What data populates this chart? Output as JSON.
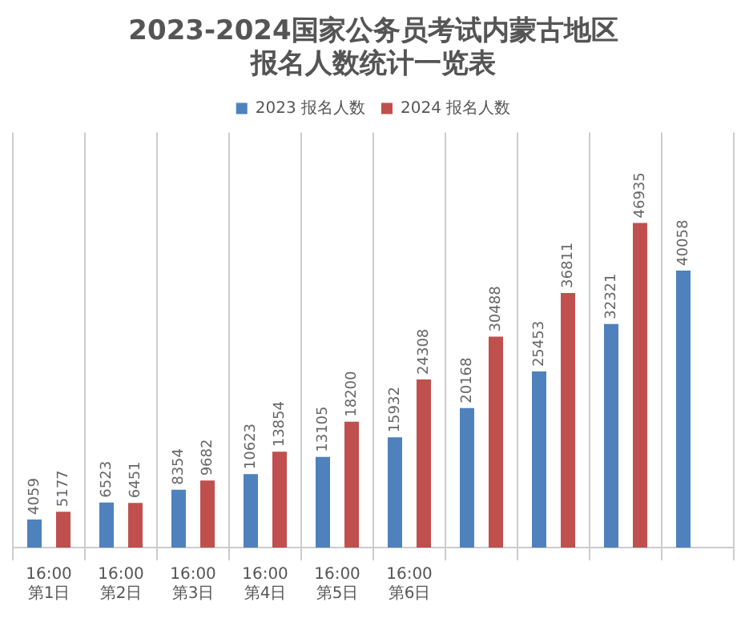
{
  "chart_data": {
    "type": "bar",
    "title": "2023-2024国家公务员考试内蒙古地区报名人数统计一览表",
    "categories": [
      "16:00\n第1日",
      "16:00\n第2日",
      "16:00\n第3日",
      "16:00\n第4日",
      "16:00\n第5日",
      "16:00\n第6日",
      null,
      null,
      null,
      null
    ],
    "series": [
      {
        "name": "2023 报名人数",
        "color": "#4f81bd",
        "values": [
          4059,
          6523,
          8354,
          10623,
          13105,
          15932,
          20168,
          25453,
          32321,
          40058
        ]
      },
      {
        "name": "2024 报名人数",
        "color": "#c0504d",
        "values": [
          5177,
          6451,
          9682,
          13854,
          18200,
          24308,
          30488,
          36811,
          46935,
          null
        ]
      }
    ],
    "data_labels": true,
    "legend": "top",
    "grid": "x"
  }
}
